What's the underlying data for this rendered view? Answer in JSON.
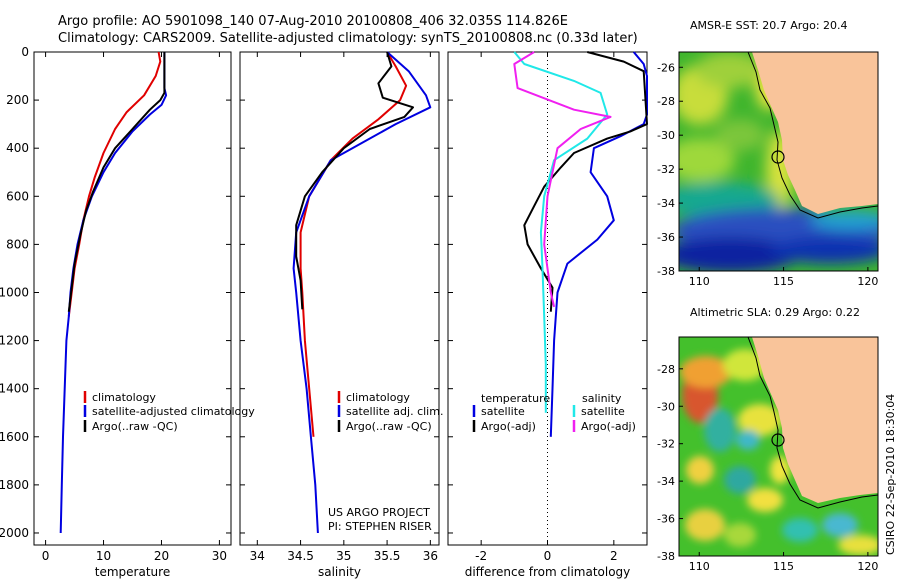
{
  "header": {
    "line1": "Argo profile: AO 5901098_140 07-Aug-2010 20100808_406 32.035S 114.826E",
    "line2": "Climatology: CARS2009. Satellite-adjusted climatology: synTS_20100808.nc (0.33d later)"
  },
  "side_label": "CSIRO 22-Sep-2010 18:30:04",
  "colors": {
    "climatology": "#e00000",
    "satellite": "#0000e0",
    "argo": "#000000",
    "sal_satellite": "#20e8e8",
    "sal_argo": "#f020f0",
    "land": "#f9c49a"
  },
  "chart_data": [
    {
      "type": "line",
      "xlabel": "temperature",
      "ylabel": "",
      "xlim": [
        -2,
        32
      ],
      "ylim": [
        2050,
        0
      ],
      "xticks": [
        "0",
        "10",
        "20",
        "30"
      ],
      "yticks": [
        "0",
        "200",
        "400",
        "600",
        "800",
        "1000",
        "1200",
        "1400",
        "1600",
        "1800",
        "2000"
      ],
      "legend": [
        "climatology",
        "satellite-adjusted climatology",
        "Argo(..raw -QC)"
      ],
      "series": [
        {
          "name": "climatology",
          "color": "#e00000",
          "points": [
            [
              19.5,
              0
            ],
            [
              19.8,
              40
            ],
            [
              19.0,
              100
            ],
            [
              17.0,
              180
            ],
            [
              14.0,
              250
            ],
            [
              12.0,
              320
            ],
            [
              10.0,
              420
            ],
            [
              8.5,
              520
            ],
            [
              7.5,
              600
            ],
            [
              6.5,
              700
            ],
            [
              5.8,
              800
            ],
            [
              5.0,
              900
            ],
            [
              4.5,
              1000
            ],
            [
              4.0,
              1100
            ]
          ]
        },
        {
          "name": "satellite-adjusted climatology",
          "color": "#0000e0",
          "points": [
            [
              20.5,
              0
            ],
            [
              20.5,
              80
            ],
            [
              20.5,
              150
            ],
            [
              20.8,
              180
            ],
            [
              20.0,
              220
            ],
            [
              18.0,
              260
            ],
            [
              15.0,
              330
            ],
            [
              12.0,
              420
            ],
            [
              10.0,
              500
            ],
            [
              8.0,
              600
            ],
            [
              6.5,
              700
            ],
            [
              5.5,
              800
            ],
            [
              4.8,
              900
            ],
            [
              4.3,
              1000
            ],
            [
              4.0,
              1100
            ],
            [
              3.6,
              1200
            ],
            [
              3.3,
              1400
            ],
            [
              3.0,
              1600
            ],
            [
              2.8,
              1800
            ],
            [
              2.6,
              2000
            ]
          ]
        },
        {
          "name": "Argo(..raw -QC)",
          "color": "#000000",
          "points": [
            [
              20.5,
              0
            ],
            [
              20.5,
              80
            ],
            [
              20.5,
              170
            ],
            [
              19.8,
              200
            ],
            [
              18.0,
              240
            ],
            [
              15.0,
              320
            ],
            [
              12.0,
              400
            ],
            [
              10.0,
              480
            ],
            [
              8.2,
              580
            ],
            [
              7.0,
              660
            ],
            [
              6.0,
              760
            ],
            [
              5.0,
              880
            ],
            [
              4.5,
              980
            ],
            [
              4.0,
              1080
            ]
          ]
        }
      ]
    },
    {
      "type": "line",
      "xlabel": "salinity",
      "ylabel": "",
      "xlim": [
        33.8,
        36.1
      ],
      "ylim": [
        2050,
        0
      ],
      "xticks": [
        "34",
        "34.5",
        "35",
        "35.5",
        "36"
      ],
      "legend": [
        "climatology",
        "satellite adj. clim.",
        "Argo(..raw -QC)"
      ],
      "annotation": [
        "US ARGO PROJECT",
        "PI: STEPHEN RISER"
      ],
      "series": [
        {
          "name": "climatology",
          "color": "#e00000",
          "points": [
            [
              35.5,
              0
            ],
            [
              35.6,
              60
            ],
            [
              35.72,
              140
            ],
            [
              35.65,
              200
            ],
            [
              35.4,
              280
            ],
            [
              35.1,
              360
            ],
            [
              34.85,
              450
            ],
            [
              34.6,
              600
            ],
            [
              34.5,
              750
            ],
            [
              34.5,
              900
            ],
            [
              34.52,
              1000
            ],
            [
              34.55,
              1200
            ],
            [
              34.6,
              1400
            ],
            [
              34.65,
              1600
            ]
          ]
        },
        {
          "name": "satellite adj. clim.",
          "color": "#0000e0",
          "points": [
            [
              35.5,
              0
            ],
            [
              35.75,
              80
            ],
            [
              35.95,
              180
            ],
            [
              36.0,
              230
            ],
            [
              35.6,
              300
            ],
            [
              35.2,
              380
            ],
            [
              34.85,
              450
            ],
            [
              34.6,
              600
            ],
            [
              34.45,
              750
            ],
            [
              34.42,
              900
            ],
            [
              34.45,
              1000
            ],
            [
              34.5,
              1200
            ],
            [
              34.57,
              1400
            ],
            [
              34.62,
              1600
            ],
            [
              34.67,
              1800
            ],
            [
              34.7,
              2000
            ]
          ]
        },
        {
          "name": "Argo(..raw -QC)",
          "color": "#000000",
          "points": [
            [
              35.5,
              0
            ],
            [
              35.55,
              60
            ],
            [
              35.4,
              130
            ],
            [
              35.45,
              190
            ],
            [
              35.8,
              230
            ],
            [
              35.7,
              270
            ],
            [
              35.3,
              320
            ],
            [
              35.0,
              400
            ],
            [
              34.75,
              500
            ],
            [
              34.55,
              600
            ],
            [
              34.45,
              720
            ],
            [
              34.45,
              850
            ],
            [
              34.5,
              950
            ],
            [
              34.52,
              1070
            ]
          ]
        }
      ]
    },
    {
      "type": "line",
      "xlabel": "difference from climatology",
      "ylabel": "",
      "xlim": [
        -3,
        3
      ],
      "ylim": [
        2050,
        0
      ],
      "xticks": [
        "-2",
        "0",
        "2"
      ],
      "legend_left_title": "temperature",
      "legend_right_title": "salinity",
      "legend": [
        "satellite",
        "Argo(-adj)",
        "satellite",
        "Argo(-adj)"
      ],
      "series": [
        {
          "name": "temperature satellite",
          "color": "#0000e0",
          "points": [
            [
              2.6,
              0
            ],
            [
              2.9,
              50
            ],
            [
              3.0,
              100
            ],
            [
              3.0,
              260
            ],
            [
              2.9,
              300
            ],
            [
              2.2,
              350
            ],
            [
              1.4,
              400
            ],
            [
              1.3,
              500
            ],
            [
              1.8,
              600
            ],
            [
              2.0,
              700
            ],
            [
              1.5,
              780
            ],
            [
              0.6,
              880
            ],
            [
              0.3,
              1000
            ],
            [
              0.2,
              1200
            ],
            [
              0.15,
              1400
            ],
            [
              0.1,
              1600
            ]
          ]
        },
        {
          "name": "temperature Argo(-adj)",
          "color": "#000000",
          "points": [
            [
              1.2,
              0
            ],
            [
              2.3,
              40
            ],
            [
              2.9,
              80
            ],
            [
              3.0,
              300
            ],
            [
              2.5,
              330
            ],
            [
              1.8,
              360
            ],
            [
              0.8,
              420
            ],
            [
              0.4,
              480
            ],
            [
              -0.1,
              560
            ],
            [
              -0.4,
              640
            ],
            [
              -0.7,
              720
            ],
            [
              -0.6,
              800
            ],
            [
              -0.2,
              900
            ],
            [
              0.15,
              980
            ],
            [
              0.1,
              1080
            ]
          ]
        },
        {
          "name": "salinity satellite",
          "color": "#20e8e8",
          "points": [
            [
              -1.0,
              0
            ],
            [
              -0.7,
              50
            ],
            [
              0.8,
              120
            ],
            [
              1.6,
              170
            ],
            [
              1.8,
              260
            ],
            [
              1.2,
              360
            ],
            [
              0.2,
              450
            ],
            [
              -0.1,
              600
            ],
            [
              -0.2,
              750
            ],
            [
              -0.15,
              900
            ],
            [
              -0.1,
              1100
            ],
            [
              -0.05,
              1300
            ],
            [
              -0.05,
              1500
            ]
          ]
        },
        {
          "name": "salinity Argo(-adj)",
          "color": "#f020f0",
          "points": [
            [
              -0.4,
              0
            ],
            [
              -1.0,
              50
            ],
            [
              -0.9,
              150
            ],
            [
              0.8,
              240
            ],
            [
              1.9,
              270
            ],
            [
              1.0,
              320
            ],
            [
              0.3,
              400
            ],
            [
              0.0,
              600
            ],
            [
              -0.1,
              800
            ],
            [
              0.1,
              1000
            ],
            [
              0.2,
              1060
            ]
          ]
        }
      ]
    }
  ],
  "maps": [
    {
      "title": "AMSR-E SST: 20.7 Argo: 20.4",
      "yticks": [
        "-26",
        "-28",
        "-30",
        "-32",
        "-34",
        "-36",
        "-38"
      ],
      "xticks": [
        "110",
        "115",
        "120"
      ]
    },
    {
      "title": "Altimetric SLA: 0.29 Argo: 0.22",
      "yticks": [
        "-28",
        "-30",
        "-32",
        "-34",
        "-36",
        "-38"
      ],
      "xticks": [
        "110",
        "115",
        "120"
      ]
    }
  ]
}
